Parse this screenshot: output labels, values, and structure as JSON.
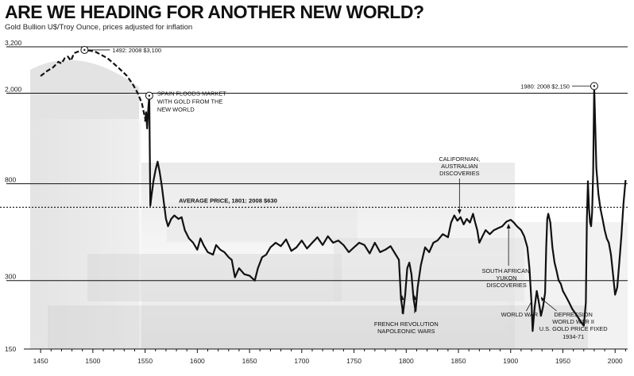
{
  "chart_data": {
    "type": "line",
    "title": "ARE WE HEADING FOR ANOTHER NEW WORLD?",
    "subtitle": "Gold Bullion U$/Troy Ounce, prices adjusted for inflation",
    "scale": "log",
    "ylim": [
      150,
      3200
    ],
    "xlim": [
      1440,
      2012
    ],
    "y_ticks": [
      "3,200",
      "2,000",
      "800",
      "300",
      "150"
    ],
    "y_tick_values": [
      3200,
      2000,
      800,
      300,
      150
    ],
    "x_ticks": [
      "1450",
      "1500",
      "1550",
      "1600",
      "1650",
      "1700",
      "1750",
      "1800",
      "1850",
      "1900",
      "1950",
      "2000"
    ],
    "x_tick_values": [
      1450,
      1500,
      1550,
      1600,
      1650,
      1700,
      1750,
      1800,
      1850,
      1900,
      1950,
      2000
    ],
    "grid": "horizontal",
    "early_series": [
      [
        1450,
        2380
      ],
      [
        1456,
        2500
      ],
      [
        1462,
        2600
      ],
      [
        1467,
        2750
      ],
      [
        1470,
        2700
      ],
      [
        1473,
        2850
      ],
      [
        1476,
        2900
      ],
      [
        1479,
        2780
      ],
      [
        1482,
        3000
      ],
      [
        1486,
        3050
      ],
      [
        1492,
        3100
      ],
      [
        1497,
        3080
      ],
      [
        1502,
        3050
      ],
      [
        1508,
        2950
      ],
      [
        1514,
        2850
      ],
      [
        1520,
        2700
      ],
      [
        1526,
        2550
      ],
      [
        1532,
        2400
      ],
      [
        1538,
        2200
      ],
      [
        1543,
        2000
      ],
      [
        1547,
        1800
      ],
      [
        1550,
        1550
      ]
    ],
    "series": [
      [
        1550,
        1500
      ],
      [
        1551,
        1650
      ],
      [
        1552,
        1400
      ],
      [
        1553,
        1700
      ],
      [
        1554,
        1950
      ],
      [
        1555,
        640
      ],
      [
        1556,
        700
      ],
      [
        1558,
        820
      ],
      [
        1560,
        920
      ],
      [
        1562,
        1000
      ],
      [
        1564,
        900
      ],
      [
        1566,
        780
      ],
      [
        1568,
        660
      ],
      [
        1570,
        560
      ],
      [
        1572,
        520
      ],
      [
        1575,
        560
      ],
      [
        1578,
        580
      ],
      [
        1582,
        560
      ],
      [
        1585,
        570
      ],
      [
        1588,
        500
      ],
      [
        1592,
        460
      ],
      [
        1596,
        440
      ],
      [
        1600,
        410
      ],
      [
        1603,
        460
      ],
      [
        1606,
        430
      ],
      [
        1610,
        400
      ],
      [
        1615,
        390
      ],
      [
        1618,
        430
      ],
      [
        1622,
        410
      ],
      [
        1626,
        400
      ],
      [
        1630,
        380
      ],
      [
        1633,
        370
      ],
      [
        1636,
        310
      ],
      [
        1640,
        340
      ],
      [
        1645,
        320
      ],
      [
        1650,
        315
      ],
      [
        1655,
        300
      ],
      [
        1658,
        340
      ],
      [
        1662,
        380
      ],
      [
        1666,
        390
      ],
      [
        1670,
        420
      ],
      [
        1675,
        440
      ],
      [
        1680,
        425
      ],
      [
        1685,
        455
      ],
      [
        1690,
        405
      ],
      [
        1695,
        420
      ],
      [
        1700,
        450
      ],
      [
        1705,
        415
      ],
      [
        1710,
        440
      ],
      [
        1715,
        465
      ],
      [
        1720,
        430
      ],
      [
        1725,
        470
      ],
      [
        1730,
        440
      ],
      [
        1735,
        450
      ],
      [
        1740,
        430
      ],
      [
        1745,
        400
      ],
      [
        1750,
        420
      ],
      [
        1755,
        440
      ],
      [
        1760,
        430
      ],
      [
        1765,
        395
      ],
      [
        1770,
        440
      ],
      [
        1775,
        400
      ],
      [
        1780,
        410
      ],
      [
        1785,
        425
      ],
      [
        1790,
        390
      ],
      [
        1793,
        370
      ],
      [
        1795,
        250
      ],
      [
        1797,
        215
      ],
      [
        1799,
        260
      ],
      [
        1801,
        340
      ],
      [
        1803,
        360
      ],
      [
        1805,
        320
      ],
      [
        1807,
        250
      ],
      [
        1809,
        220
      ],
      [
        1811,
        280
      ],
      [
        1814,
        350
      ],
      [
        1818,
        420
      ],
      [
        1822,
        400
      ],
      [
        1826,
        440
      ],
      [
        1830,
        450
      ],
      [
        1835,
        480
      ],
      [
        1840,
        465
      ],
      [
        1843,
        540
      ],
      [
        1846,
        580
      ],
      [
        1849,
        550
      ],
      [
        1852,
        570
      ],
      [
        1855,
        530
      ],
      [
        1858,
        560
      ],
      [
        1861,
        540
      ],
      [
        1864,
        590
      ],
      [
        1866,
        540
      ],
      [
        1868,
        500
      ],
      [
        1870,
        440
      ],
      [
        1873,
        470
      ],
      [
        1876,
        500
      ],
      [
        1880,
        480
      ],
      [
        1884,
        500
      ],
      [
        1888,
        510
      ],
      [
        1892,
        520
      ],
      [
        1896,
        545
      ],
      [
        1900,
        555
      ],
      [
        1903,
        540
      ],
      [
        1906,
        520
      ],
      [
        1910,
        500
      ],
      [
        1913,
        470
      ],
      [
        1916,
        420
      ],
      [
        1918,
        340
      ],
      [
        1920,
        240
      ],
      [
        1921,
        180
      ],
      [
        1923,
        230
      ],
      [
        1925,
        270
      ],
      [
        1927,
        240
      ],
      [
        1929,
        210
      ],
      [
        1931,
        230
      ],
      [
        1933,
        265
      ],
      [
        1934,
        420
      ],
      [
        1935,
        560
      ],
      [
        1936,
        590
      ],
      [
        1938,
        540
      ],
      [
        1940,
        420
      ],
      [
        1942,
        360
      ],
      [
        1944,
        330
      ],
      [
        1946,
        300
      ],
      [
        1948,
        290
      ],
      [
        1950,
        270
      ],
      [
        1953,
        255
      ],
      [
        1956,
        240
      ],
      [
        1959,
        225
      ],
      [
        1962,
        215
      ],
      [
        1965,
        205
      ],
      [
        1968,
        195
      ],
      [
        1970,
        190
      ],
      [
        1972,
        240
      ],
      [
        1973,
        560
      ],
      [
        1974,
        820
      ],
      [
        1975,
        620
      ],
      [
        1976,
        540
      ],
      [
        1977,
        520
      ],
      [
        1978,
        600
      ],
      [
        1979,
        900
      ],
      [
        1980,
        2150
      ],
      [
        1981,
        1450
      ],
      [
        1982,
        940
      ],
      [
        1984,
        720
      ],
      [
        1986,
        620
      ],
      [
        1988,
        560
      ],
      [
        1990,
        500
      ],
      [
        1992,
        460
      ],
      [
        1994,
        440
      ],
      [
        1996,
        390
      ],
      [
        1998,
        320
      ],
      [
        2000,
        260
      ],
      [
        2002,
        280
      ],
      [
        2004,
        360
      ],
      [
        2006,
        470
      ],
      [
        2008,
        650
      ],
      [
        2010,
        830
      ]
    ],
    "reference_line": {
      "label": "AVERAGE PRICE, 1801: 2008 $630",
      "value": 630
    },
    "annotations": [
      {
        "text": "1492: 2008 $3,100"
      },
      {
        "text": "SPAIN FLOODS MARKET",
        "text2": "WITH GOLD FROM THE",
        "text3": "NEW WORLD"
      },
      {
        "text": "1980: 2008 $2,150"
      },
      {
        "text": "CALIFORNIAN,",
        "text2": "AUSTRALIAN",
        "text3": "DISCOVERIES"
      },
      {
        "text": "SOUTH AFRICAN,",
        "text2": "YUKON",
        "text3": "DISCOVERIES"
      },
      {
        "text": "FRENCH REVOLUTION",
        "text2": "NAPOLEONIC WARS"
      },
      {
        "text": "WORLD WAR I"
      },
      {
        "text": "DEPRESSION",
        "text2": "WORLD WAR II",
        "text3": "U.S. GOLD PRICE FIXED",
        "text4": "1934-71"
      }
    ]
  }
}
